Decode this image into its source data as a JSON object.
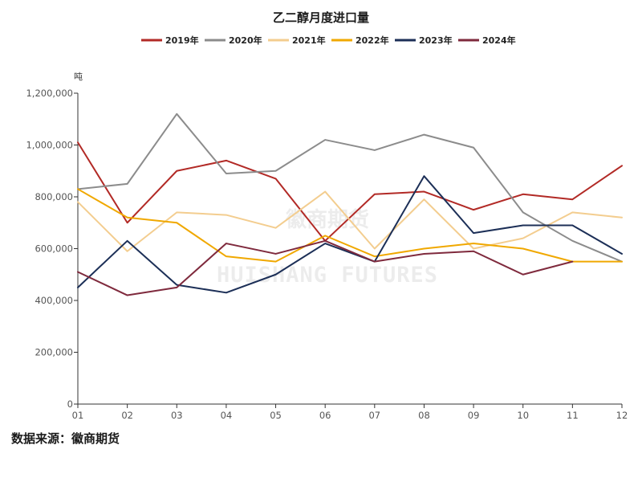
{
  "chart_data": {
    "type": "line",
    "title": "乙二醇月度进口量",
    "ylabel": "吨",
    "xlabel": "",
    "categories": [
      "01",
      "02",
      "03",
      "04",
      "05",
      "06",
      "07",
      "08",
      "09",
      "10",
      "11",
      "12"
    ],
    "ylim": [
      0,
      1200000
    ],
    "yticks": [
      0,
      200000,
      400000,
      600000,
      800000,
      1000000,
      1200000
    ],
    "ytick_labels": [
      "0",
      "200,000",
      "400,000",
      "600,000",
      "800,000",
      "1,000,000",
      "1,200,000"
    ],
    "legend_position": "top-center",
    "grid": false,
    "series": [
      {
        "name": "2019年",
        "color": "#b22a26",
        "values": [
          1010000,
          700000,
          900000,
          940000,
          870000,
          630000,
          810000,
          820000,
          750000,
          810000,
          790000,
          920000
        ]
      },
      {
        "name": "2020年",
        "color": "#8c8c8c",
        "values": [
          830000,
          850000,
          1120000,
          890000,
          900000,
          1020000,
          980000,
          1040000,
          990000,
          740000,
          630000,
          550000
        ]
      },
      {
        "name": "2021年",
        "color": "#f3cd8f",
        "values": [
          780000,
          590000,
          740000,
          730000,
          680000,
          820000,
          600000,
          790000,
          600000,
          640000,
          740000,
          720000
        ]
      },
      {
        "name": "2022年",
        "color": "#f0a800",
        "values": [
          830000,
          720000,
          700000,
          570000,
          550000,
          650000,
          570000,
          600000,
          620000,
          600000,
          550000,
          550000
        ]
      },
      {
        "name": "2023年",
        "color": "#1c2f57",
        "values": [
          450000,
          630000,
          460000,
          430000,
          500000,
          620000,
          550000,
          880000,
          660000,
          690000,
          690000,
          580000
        ]
      },
      {
        "name": "2024年",
        "color": "#7f2a3d",
        "values": [
          510000,
          420000,
          450000,
          620000,
          580000,
          630000,
          550000,
          580000,
          590000,
          500000,
          550000,
          null
        ]
      }
    ]
  },
  "watermark": {
    "cn": "徽商期货",
    "en": "HUISHANG FUTURES"
  },
  "source": "数据来源：徽商期货"
}
